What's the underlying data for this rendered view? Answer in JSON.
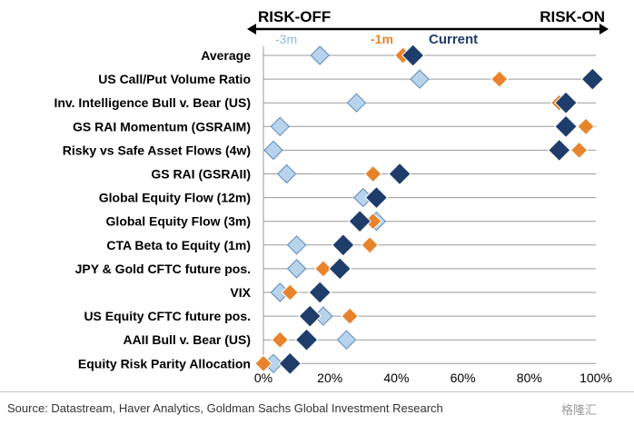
{
  "chart_data": {
    "type": "scatter",
    "direction_left": "RISK-OFF",
    "direction_right": "RISK-ON",
    "categories": [
      "Average",
      "US Call/Put Volume Ratio",
      "Inv. Intelligence Bull v. Bear (US)",
      "GS RAI Momentum (GSRAIM)",
      "Risky vs Safe Asset Flows (4w)",
      "GS RAI (GSRAII)",
      "Global Equity Flow (12m)",
      "Global Equity Flow (3m)",
      "CTA Beta to Equity (1m)",
      "JPY & Gold CFTC future pos.",
      "VIX",
      "US Equity CFTC future pos.",
      "AAII Bull v. Bear (US)",
      "Equity Risk Parity Allocation"
    ],
    "series": [
      {
        "name": "-3m",
        "color": "#b8d3ec",
        "values": [
          17,
          47,
          28,
          5,
          3,
          7,
          30,
          34,
          10,
          10,
          5,
          18,
          25,
          3
        ]
      },
      {
        "name": "-1m",
        "color": "#e8832c",
        "values": [
          42,
          71,
          89,
          97,
          95,
          33,
          35,
          33,
          32,
          18,
          8,
          26,
          5,
          0
        ]
      },
      {
        "name": "Current",
        "color": "#1f3d6b",
        "values": [
          45,
          99,
          91,
          91,
          89,
          41,
          34,
          29,
          24,
          23,
          17,
          14,
          13,
          8
        ]
      }
    ],
    "x_tick_labels": [
      "0%",
      "20%",
      "40%",
      "60%",
      "80%",
      "100%"
    ],
    "xlim": [
      0,
      100
    ],
    "grid": "horizontal",
    "source": "Source: Datastream, Haver Analytics, Goldman Sachs Global Investment Research",
    "watermark": "格隆汇"
  }
}
